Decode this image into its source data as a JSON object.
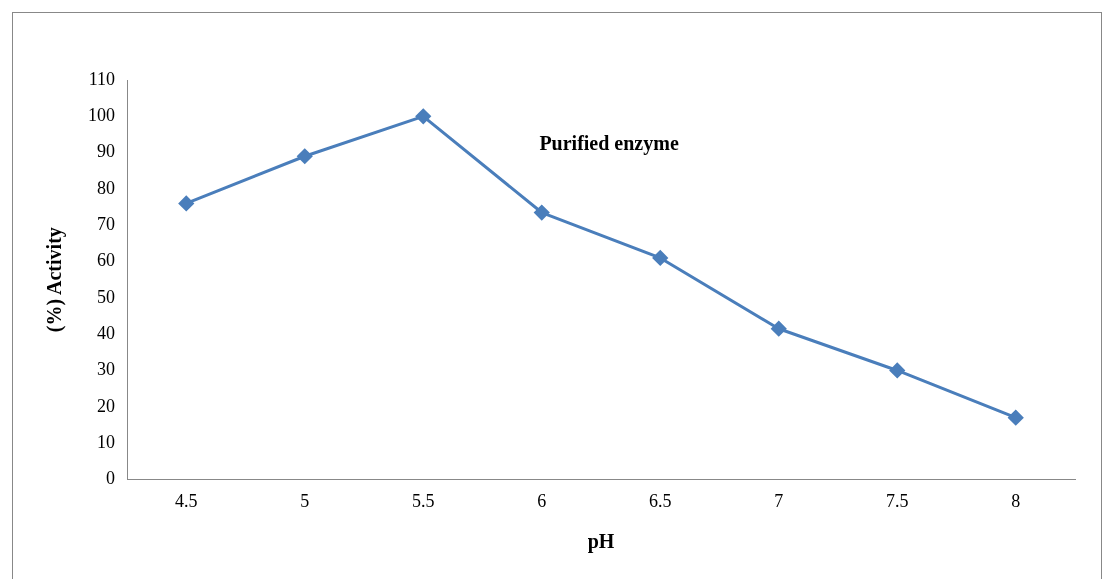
{
  "chart_data": {
    "type": "line",
    "xlabel": "pH",
    "ylabel": "(%) Activity",
    "annotations": [
      "Purified enzyme"
    ],
    "categories": [
      "4.5",
      "5",
      "5.5",
      "6",
      "6.5",
      "7",
      "7.5",
      "8"
    ],
    "series": [
      {
        "color": "#4a7ebb",
        "values": [
          76,
          89,
          100,
          73.5,
          61,
          41.5,
          30,
          17
        ]
      }
    ],
    "ylim": [
      0,
      110
    ],
    "yticks": [
      0,
      10,
      20,
      30,
      40,
      50,
      60,
      70,
      80,
      90,
      100,
      110
    ],
    "grid": false,
    "legend": false,
    "marker": "diamond",
    "line_style": "solid"
  }
}
